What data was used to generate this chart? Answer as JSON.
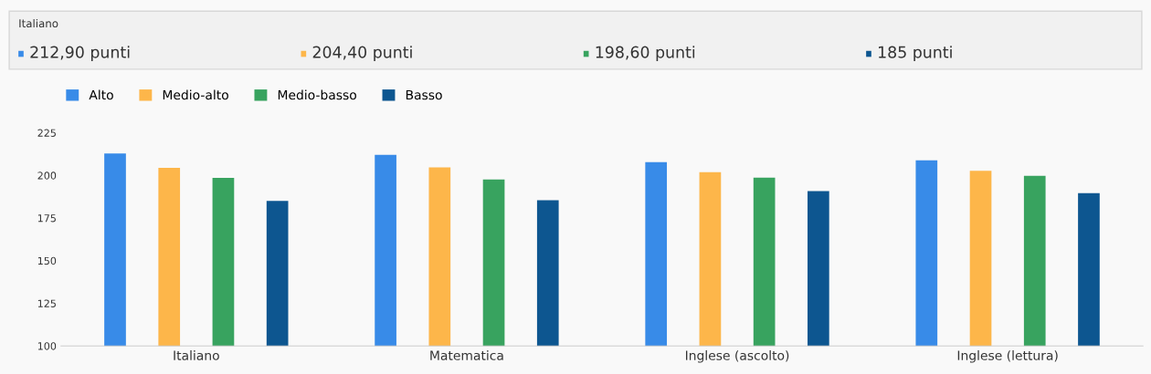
{
  "chart_data": {
    "type": "bar",
    "annotations": [
      "Italiano",
      "212,90 punti",
      "204,40 punti",
      "198,60 punti",
      "185 punti"
    ],
    "categories": [
      "Italiano",
      "Matematica",
      "Inglese (ascolto)",
      "Inglese (lettura)"
    ],
    "series": [
      {
        "name": "Alto",
        "color": "#388be8",
        "values": [
          212.9,
          212.0,
          207.8,
          208.8
        ]
      },
      {
        "name": "Medio-alto",
        "color": "#fdb64a",
        "values": [
          204.4,
          204.7,
          201.9,
          202.7
        ]
      },
      {
        "name": "Medio-basso",
        "color": "#38a35f",
        "values": [
          198.6,
          197.6,
          198.7,
          199.7
        ]
      },
      {
        "name": "Basso",
        "color": "#0d5690",
        "values": [
          185,
          185.5,
          190.8,
          189.6
        ]
      }
    ],
    "ylim": [
      100,
      225
    ],
    "yticks": [
      100,
      125,
      150,
      175,
      200,
      225
    ],
    "grid": false,
    "legend": "top left"
  }
}
